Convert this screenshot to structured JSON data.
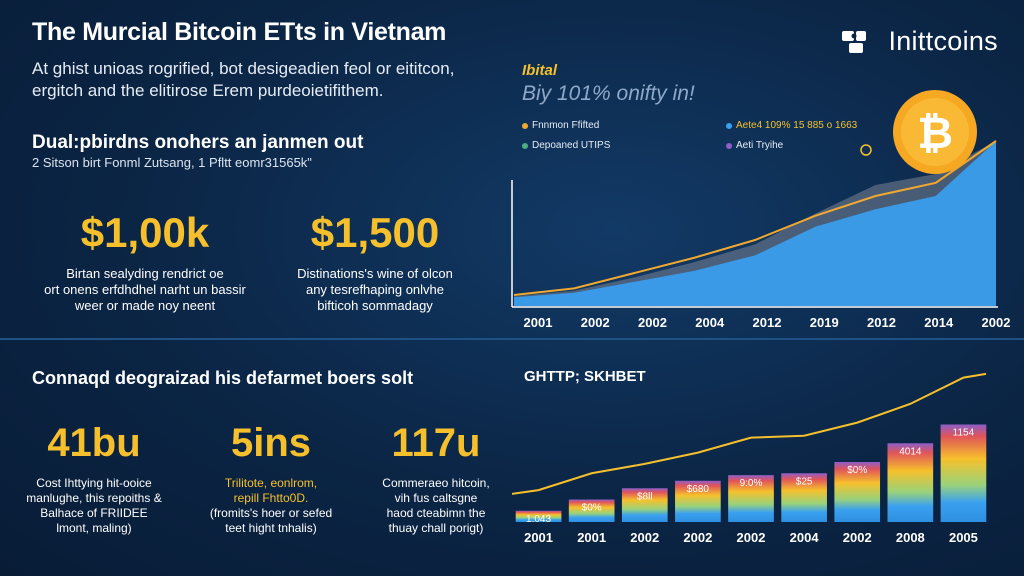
{
  "header": {
    "title": "The Murcial Bitcoin ETts in Vietnam",
    "subtitle_line1": "At ghist unioas rogrified, bot desigeadien feol or eititcon,",
    "subtitle_line2": "ergitch and the elitirose Erem purdeoietifithem."
  },
  "brand": {
    "name": "Inittcoins",
    "logo_icon": "puzzle-logo-icon"
  },
  "section1": {
    "heading": "Dual:pbirdns onohers an janmen out",
    "subheading": "2 Sitson birt Fonml Zutsang, 1 Pfltt eomr31565k\"",
    "stats": [
      {
        "value": "$1,00k",
        "desc": [
          "Birtan sealyding rendrict oe",
          "ort onens erfdhdhel narht un bassir",
          "weer or made noy neent"
        ]
      },
      {
        "value": "$1,500",
        "desc": [
          "Distinations's wine of olcon",
          "any tesrefhaping onlvhe",
          "bifticoh sommadagy"
        ]
      }
    ]
  },
  "section2": {
    "heading": "Connaqd deograizad his defarmet boers solt",
    "stats": [
      {
        "value": "41bu",
        "desc": [
          "Cost Ihttying hit-ooice",
          "manlughe, this repoiths &",
          "Balhace of FRIIDEE",
          "lmont, maling)"
        ],
        "gold": false
      },
      {
        "value": "5ins",
        "desc": [
          "Trilitote, eonlrom,",
          "repill Fhtto0D.",
          "(fromits's hoer or sefed",
          "teet hight tnhalis)"
        ],
        "gold": true
      },
      {
        "value": "117u",
        "desc": [
          "Commeraeo hitcoin,",
          "vih fus caltsgne",
          "haod cteabimn the",
          "thuay chall porigt)"
        ],
        "gold": false
      }
    ]
  },
  "chart_data": [
    {
      "type": "area",
      "title": "Ibital",
      "subtitle": "Biy 101% onifty in!",
      "legend": [
        {
          "label": "Fnnmon Ffifted",
          "color": "#f0a830"
        },
        {
          "label": "Depoaned UTIPS",
          "color": "#4caf80"
        },
        {
          "label": "Aete4 109% 15 885 o 1663",
          "color": "#3aa0f0"
        },
        {
          "label": "Aeti Tryihe",
          "color": "#8e5fc8"
        }
      ],
      "legend_placement": "top",
      "categories": [
        "2001",
        "2002",
        "2002",
        "2004",
        "2012",
        "2019",
        "2012",
        "2014",
        "2002"
      ],
      "series": [
        {
          "name": "Aete4 109% 15 885 o 1663",
          "values": [
            8,
            12,
            22,
            32,
            46,
            72,
            88,
            100,
            150
          ]
        },
        {
          "name": "Fnnmon Ffifted",
          "values": [
            10,
            16,
            30,
            44,
            60,
            82,
            100,
            112,
            150
          ]
        },
        {
          "name": "Aeti Tryihe",
          "values": [
            9,
            14,
            26,
            40,
            56,
            84,
            110,
            120,
            150
          ]
        }
      ],
      "ylim": [
        0,
        160
      ],
      "grid": false
    },
    {
      "type": "bar",
      "title": "GHTTP; SKHBET",
      "categories": [
        "2001",
        "2001",
        "2002",
        "2002",
        "2002",
        "2004",
        "2002",
        "2008",
        "2005"
      ],
      "values": [
        12,
        24,
        36,
        44,
        50,
        52,
        64,
        84,
        104
      ],
      "data_labels": [
        "1:043",
        "$0%",
        "$8ll",
        "$680",
        "9:0%",
        "$25",
        "$0%",
        "4014",
        "1154"
      ],
      "trend_line": [
        34,
        52,
        62,
        74,
        90,
        92,
        106,
        126,
        154
      ],
      "ylim": [
        0,
        160
      ],
      "grid": false
    }
  ],
  "colors": {
    "accent": "#f6c02c",
    "background": "#0b2545",
    "area_blue": "#3aa0f0",
    "bitcoin": "#f7a823"
  },
  "icons": {
    "coin": "bitcoin-coin-icon"
  }
}
